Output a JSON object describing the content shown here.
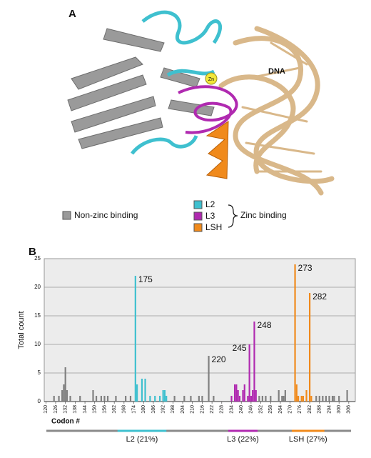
{
  "structure": {
    "panel_label": "A",
    "dna_label": "DNA",
    "zn_label": "Zn",
    "zinc_binding_label": "Zinc binding"
  },
  "chart_data": {
    "type": "bar",
    "panel_label": "B",
    "ylabel": "Total count",
    "xlabel": "Codon #",
    "xlim": [
      119,
      310
    ],
    "xticks": [
      120,
      126,
      132,
      138,
      144,
      150,
      156,
      162,
      168,
      174,
      180,
      186,
      192,
      198,
      204,
      210,
      216,
      222,
      228,
      234,
      240,
      246,
      252,
      258,
      264,
      270,
      276,
      282,
      288,
      294,
      300,
      306
    ],
    "ylim": [
      0,
      25
    ],
    "yticks": [
      0,
      5,
      10,
      15,
      20,
      25
    ],
    "grid": true,
    "series": [
      {
        "name": "Non-zinc binding",
        "color": "#808080",
        "x": [
          125,
          128,
          130,
          131,
          132,
          133,
          135,
          141,
          149,
          151,
          154,
          156,
          158,
          163,
          169,
          172,
          199,
          205,
          209,
          214,
          216,
          220,
          223,
          251,
          253,
          255,
          258,
          263,
          265,
          266,
          267,
          286,
          288,
          290,
          292,
          294,
          296,
          297,
          300,
          305
        ],
        "values": [
          1,
          1,
          2,
          3,
          6,
          2,
          1,
          1,
          2,
          1,
          1,
          1,
          1,
          1,
          1,
          1,
          1,
          1,
          1,
          1,
          1,
          8,
          1,
          1,
          1,
          1,
          1,
          2,
          1,
          1,
          2,
          1,
          1,
          1,
          1,
          1,
          1,
          1,
          1,
          2
        ]
      },
      {
        "name": "L2",
        "color": "#3fc0cf",
        "x": [
          175,
          176,
          179,
          181,
          184,
          187,
          190,
          192,
          193,
          194
        ],
        "values": [
          22,
          3,
          4,
          4,
          1,
          1,
          1,
          2,
          2,
          1
        ]
      },
      {
        "name": "L3",
        "color": "#b02ab0",
        "x": [
          234,
          236,
          237,
          238,
          239,
          241,
          242,
          244,
          245,
          246,
          247,
          248,
          249
        ],
        "values": [
          1,
          3,
          3,
          2,
          1,
          2,
          3,
          1,
          10,
          1,
          2,
          14,
          2
        ]
      },
      {
        "name": "LSH",
        "color": "#f08a1c",
        "x": [
          273,
          274,
          275,
          277,
          278,
          280,
          282,
          283
        ],
        "values": [
          24,
          3,
          1,
          1,
          1,
          2,
          19,
          1
        ]
      }
    ],
    "annotations": [
      {
        "text": "175",
        "x": 175
      },
      {
        "text": "220",
        "x": 220
      },
      {
        "text": "245",
        "x": 245
      },
      {
        "text": "248",
        "x": 248
      },
      {
        "text": "273",
        "x": 273
      },
      {
        "text": "282",
        "x": 282
      }
    ],
    "regions": [
      {
        "label": "L2 (21%)",
        "color": "#3fc0cf",
        "start": 164,
        "end": 194
      },
      {
        "label": "L3 (22%)",
        "color": "#b02ab0",
        "start": 232,
        "end": 250
      },
      {
        "label": "LSH (27%)",
        "color": "#f08a1c",
        "start": 271,
        "end": 291
      }
    ]
  }
}
